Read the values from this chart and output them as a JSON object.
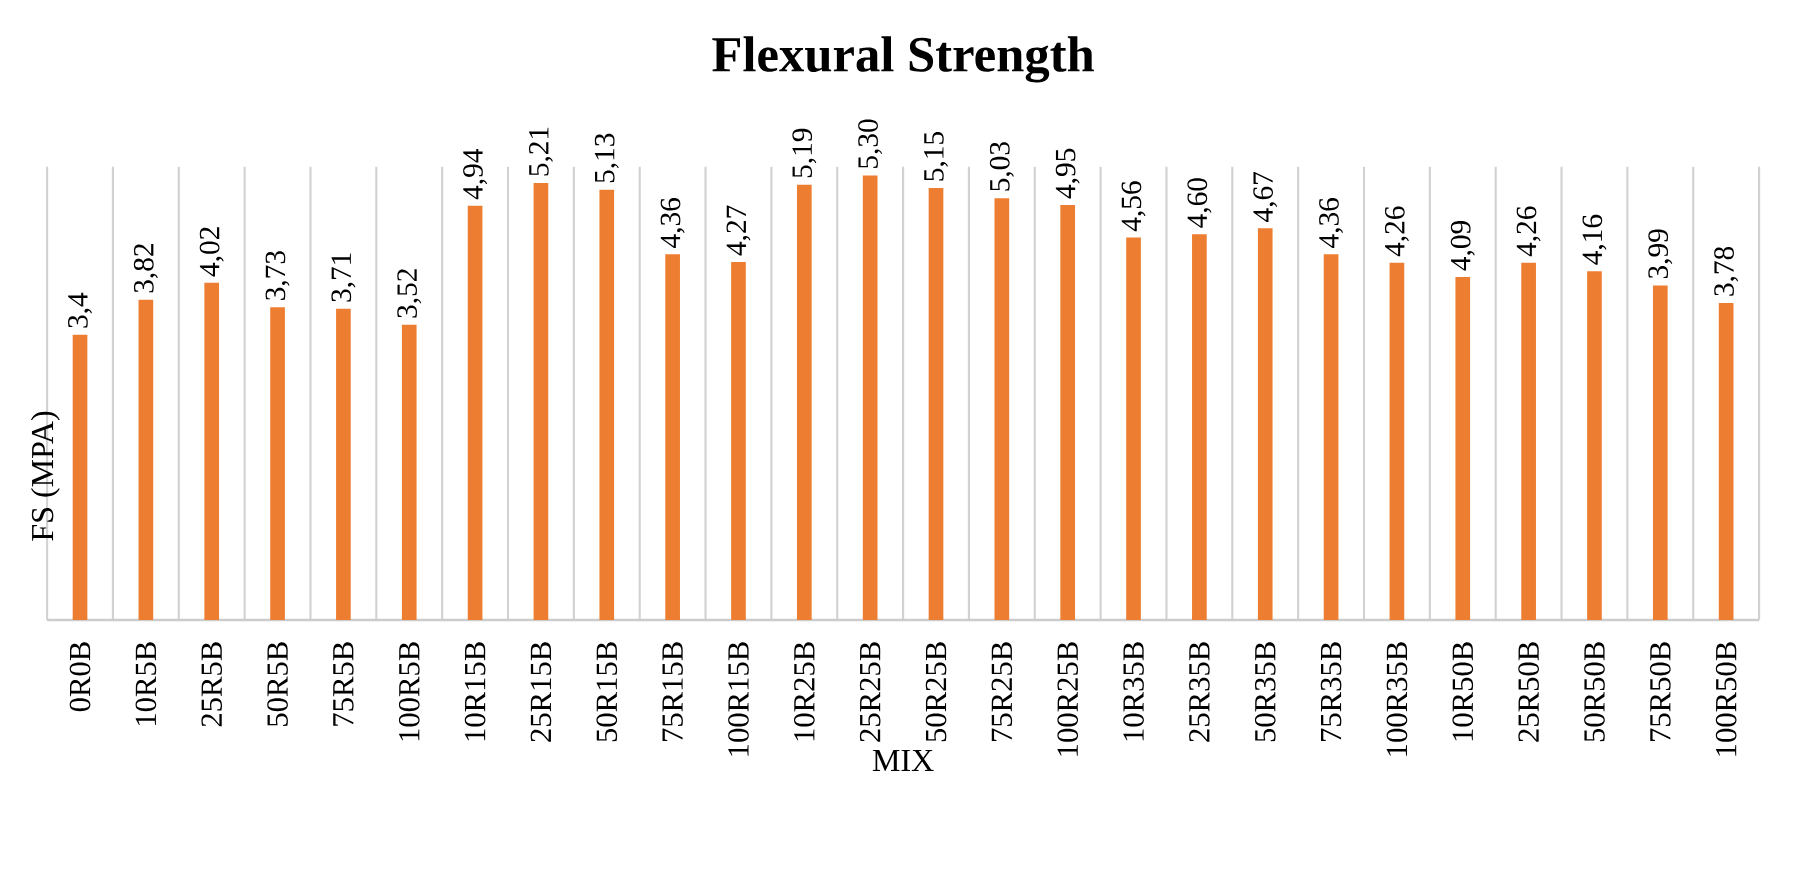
{
  "chart_data": {
    "type": "bar",
    "title": "Flexural Strength",
    "xlabel": "MIX",
    "ylabel": "FS (MPA)",
    "categories": [
      "0R0B",
      "10R5B",
      "25R5B",
      "50R5B",
      "75R5B",
      "100R5B",
      "10R15B",
      "25R15B",
      "50R15B",
      "75R15B",
      "100R15B",
      "10R25B",
      "25R25B",
      "50R25B",
      "75R25B",
      "100R25B",
      "10R35B",
      "25R35B",
      "50R35B",
      "75R35B",
      "100R35B",
      "10R50B",
      "25R50B",
      "50R50B",
      "75R50B",
      "100R50B"
    ],
    "values": [
      3.4,
      3.82,
      4.02,
      3.73,
      3.71,
      3.52,
      4.94,
      5.21,
      5.13,
      4.36,
      4.27,
      5.19,
      5.3,
      5.15,
      5.03,
      4.95,
      4.56,
      4.6,
      4.67,
      4.36,
      4.26,
      4.09,
      4.26,
      4.16,
      3.99,
      3.78
    ],
    "value_labels": [
      "3,4",
      "3,82",
      "4,02",
      "3,73",
      "3,71",
      "3,52",
      "4,94",
      "5,21",
      "5,13",
      "4,36",
      "4,27",
      "5,19",
      "5,30",
      "5,15",
      "5,03",
      "4,95",
      "4,56",
      "4,60",
      "4,67",
      "4,36",
      "4,26",
      "4,09",
      "4,26",
      "4,16",
      "3,99",
      "3,78"
    ],
    "color": "#ed7d31",
    "grid": "x"
  }
}
